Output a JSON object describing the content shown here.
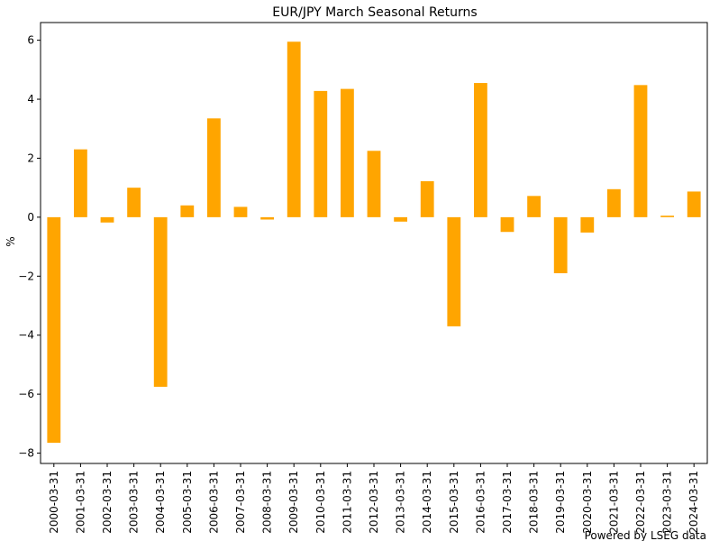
{
  "chart_data": {
    "type": "bar",
    "title": "EUR/JPY March Seasonal Returns",
    "xlabel": "",
    "ylabel": "%",
    "ylim": [
      -8.35,
      6.6
    ],
    "yticks": [
      -8,
      -6,
      -4,
      -2,
      0,
      2,
      4,
      6
    ],
    "ytick_labels": [
      "−8",
      "−6",
      "−4",
      "−2",
      "0",
      "2",
      "4",
      "6"
    ],
    "grid": false,
    "legend": "none",
    "bar_color": "#ffa500",
    "categories": [
      "2000-03-31",
      "2001-03-31",
      "2002-03-31",
      "2003-03-31",
      "2004-03-31",
      "2005-03-31",
      "2006-03-31",
      "2007-03-31",
      "2008-03-31",
      "2009-03-31",
      "2010-03-31",
      "2011-03-31",
      "2012-03-31",
      "2013-03-31",
      "2014-03-31",
      "2015-03-31",
      "2016-03-31",
      "2017-03-31",
      "2018-03-31",
      "2019-03-31",
      "2020-03-31",
      "2021-03-31",
      "2022-03-31",
      "2023-03-31",
      "2024-03-31"
    ],
    "values": [
      -7.65,
      2.3,
      -0.18,
      1.0,
      -5.75,
      0.4,
      3.35,
      0.35,
      -0.08,
      5.95,
      4.28,
      4.35,
      2.25,
      -0.15,
      1.22,
      -3.7,
      4.55,
      -0.5,
      0.72,
      -1.9,
      -0.52,
      0.95,
      4.48,
      0.05,
      0.87
    ]
  },
  "footer": {
    "credit": "Powered by LSEG data"
  }
}
